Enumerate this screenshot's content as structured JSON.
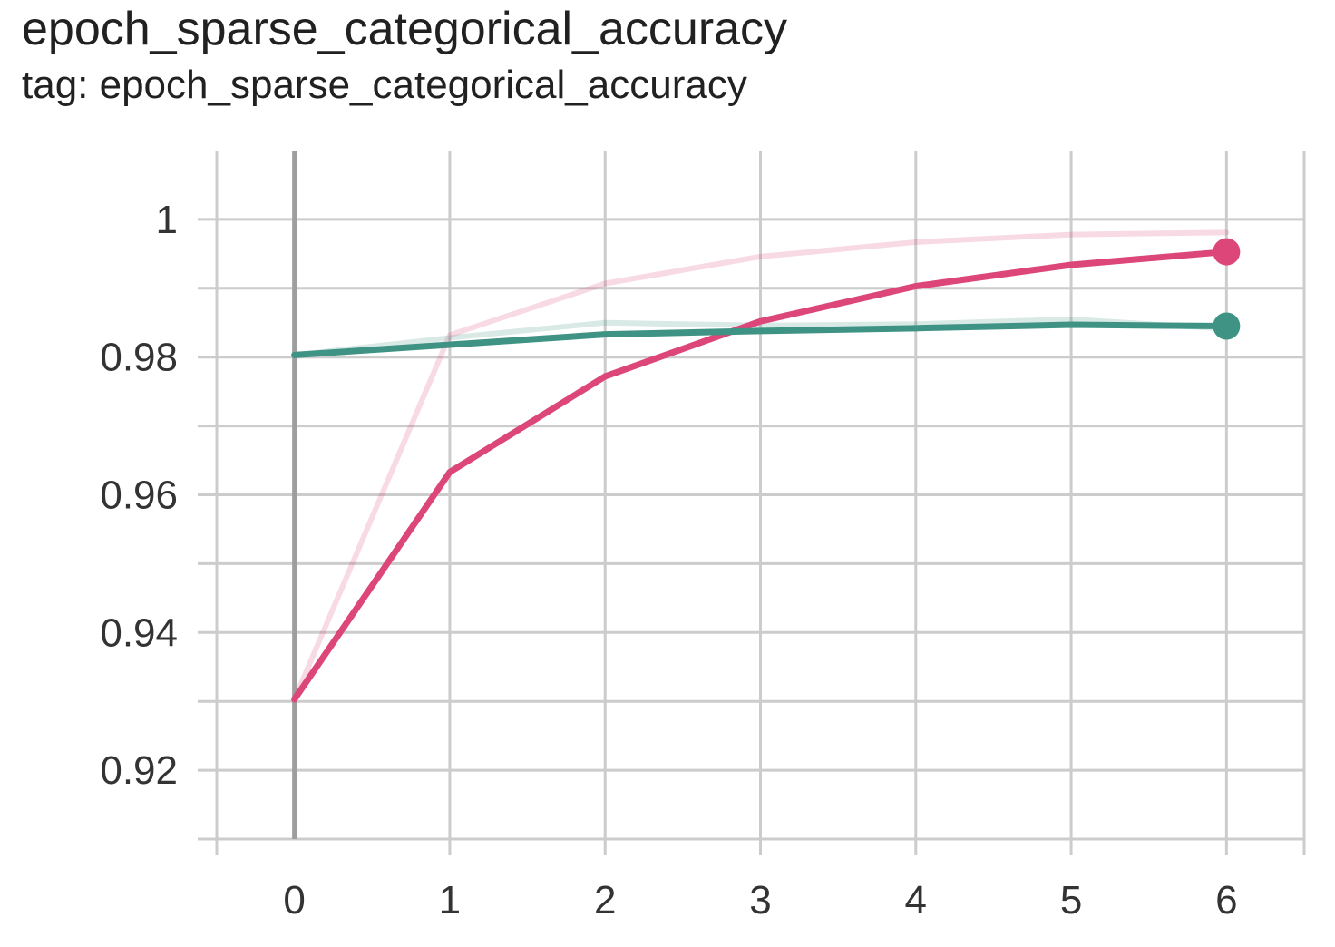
{
  "chart_data": {
    "type": "line",
    "title": "epoch_sparse_categorical_accuracy",
    "subtitle": "tag: epoch_sparse_categorical_accuracy",
    "xlabel": "",
    "ylabel": "",
    "xlim": [
      -0.5,
      6.5
    ],
    "ylim": [
      0.91,
      1.01
    ],
    "x_ticks": [
      0,
      1,
      2,
      3,
      4,
      5,
      6
    ],
    "x_tick_labels": [
      "0",
      "1",
      "2",
      "3",
      "4",
      "5",
      "6"
    ],
    "y_ticks": [
      0.92,
      0.94,
      0.96,
      0.98,
      1.0
    ],
    "y_tick_labels": [
      "0.92",
      "0.94",
      "0.96",
      "0.98",
      "1"
    ],
    "y_minor_ticks": [
      0.91,
      0.93,
      0.95,
      0.97,
      0.99
    ],
    "grid": true,
    "legend": "none",
    "x": [
      0,
      1,
      2,
      3,
      4,
      5,
      6
    ],
    "series": [
      {
        "color": "#dc4678",
        "raw_values": [
          0.9303,
          0.9832,
          0.9907,
          0.9946,
          0.9967,
          0.9978,
          0.9981
        ],
        "values": [
          0.9303,
          0.9633,
          0.9772,
          0.9852,
          0.9903,
          0.9934,
          0.9953
        ]
      },
      {
        "color": "#3f9384",
        "raw_values": [
          0.9803,
          0.9828,
          0.985,
          0.9846,
          0.9848,
          0.9855,
          0.9841
        ],
        "values": [
          0.9803,
          0.9818,
          0.9833,
          0.9838,
          0.9842,
          0.9847,
          0.9845
        ]
      }
    ]
  }
}
